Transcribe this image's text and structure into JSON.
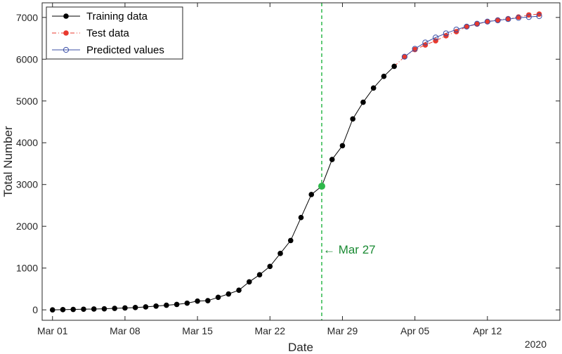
{
  "chart_data": {
    "type": "line",
    "title": "",
    "xlabel": "Date",
    "ylabel": "Total Number",
    "year_label": "2020",
    "ylim": [
      -250,
      7350
    ],
    "y_ticks": [
      0,
      1000,
      2000,
      3000,
      4000,
      5000,
      6000,
      7000
    ],
    "xlim": [
      "2020-02-29",
      "2020-04-19"
    ],
    "x_ticks": [
      {
        "date": "2020-03-01",
        "label": "Mar 01"
      },
      {
        "date": "2020-03-08",
        "label": "Mar 08"
      },
      {
        "date": "2020-03-15",
        "label": "Mar 15"
      },
      {
        "date": "2020-03-22",
        "label": "Mar 22"
      },
      {
        "date": "2020-03-29",
        "label": "Mar 29"
      },
      {
        "date": "2020-04-05",
        "label": "Apr 05"
      },
      {
        "date": "2020-04-12",
        "label": "Apr 12"
      }
    ],
    "grid": false,
    "legend_position": "top-left",
    "series": [
      {
        "name": "Training data",
        "color": "#000000",
        "marker": "filled-circle",
        "line": "solid",
        "x": [
          "2020-03-01",
          "2020-03-02",
          "2020-03-03",
          "2020-03-04",
          "2020-03-05",
          "2020-03-06",
          "2020-03-07",
          "2020-03-08",
          "2020-03-09",
          "2020-03-10",
          "2020-03-11",
          "2020-03-12",
          "2020-03-13",
          "2020-03-14",
          "2020-03-15",
          "2020-03-16",
          "2020-03-17",
          "2020-03-18",
          "2020-03-19",
          "2020-03-20",
          "2020-03-21",
          "2020-03-22",
          "2020-03-23",
          "2020-03-24",
          "2020-03-25",
          "2020-03-26",
          "2020-03-27",
          "2020-03-28",
          "2020-03-29",
          "2020-03-30",
          "2020-03-31",
          "2020-04-01",
          "2020-04-02",
          "2020-04-03"
        ],
        "y": [
          0,
          5,
          10,
          15,
          20,
          25,
          35,
          45,
          55,
          70,
          90,
          110,
          130,
          160,
          210,
          220,
          300,
          380,
          470,
          670,
          840,
          1040,
          1350,
          1660,
          2210,
          2760,
          2960,
          3600,
          3930,
          4570,
          4970,
          5310,
          5590,
          5830
        ]
      },
      {
        "name": "Test data",
        "color": "#e8392e",
        "marker": "filled-circle",
        "line": "dash-dot",
        "x": [
          "2020-04-04",
          "2020-04-05",
          "2020-04-06",
          "2020-04-07",
          "2020-04-08",
          "2020-04-09",
          "2020-04-10",
          "2020-04-11",
          "2020-04-12",
          "2020-04-13",
          "2020-04-14",
          "2020-04-15",
          "2020-04-16",
          "2020-04-17"
        ],
        "y": [
          6060,
          6230,
          6340,
          6440,
          6560,
          6660,
          6780,
          6840,
          6900,
          6940,
          6970,
          7010,
          7060,
          7080
        ]
      },
      {
        "name": "Predicted values",
        "color": "#3b4fa6",
        "marker": "open-circle",
        "line": "solid",
        "x": [
          "2020-04-04",
          "2020-04-05",
          "2020-04-06",
          "2020-04-07",
          "2020-04-08",
          "2020-04-09",
          "2020-04-10",
          "2020-04-11",
          "2020-04-12",
          "2020-04-13",
          "2020-04-14",
          "2020-04-15",
          "2020-04-16",
          "2020-04-17"
        ],
        "y": [
          6060,
          6250,
          6400,
          6520,
          6620,
          6710,
          6780,
          6850,
          6900,
          6930,
          6960,
          6990,
          7010,
          7030
        ]
      }
    ],
    "highlight_point": {
      "date": "2020-03-27",
      "value": 2960,
      "color": "#2db84a"
    },
    "vertical_line": {
      "date": "2020-03-27",
      "color": "#2db84a",
      "style": "dashed"
    },
    "annotation": {
      "text": "← Mar 27",
      "date": "2020-03-27",
      "value": 1450,
      "color": "#1a8a33"
    }
  }
}
